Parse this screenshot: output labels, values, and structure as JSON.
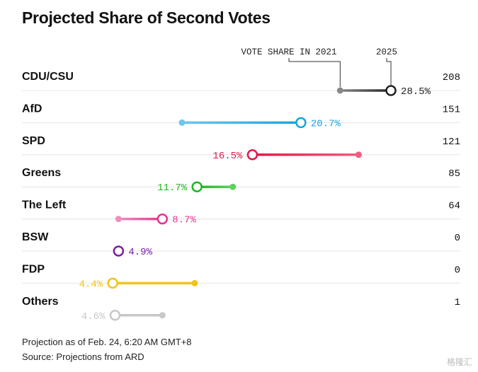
{
  "title": "Projected Share of Second Votes",
  "legend": {
    "label_2021": "VOTE SHARE IN 2021",
    "label_2025": "2025"
  },
  "chart_data": {
    "type": "dumbbell",
    "title": "Projected Share of Second Votes",
    "series_names": [
      "2021",
      "2025"
    ],
    "unit": "%",
    "rows": [
      {
        "party": "CDU/CSU",
        "share_2021": 24.1,
        "share_2025": 28.5,
        "label": "28.5%",
        "seats": "208",
        "color": "#222222",
        "color_2021": "#888888"
      },
      {
        "party": "AfD",
        "share_2021": 10.4,
        "share_2025": 20.7,
        "label": "20.7%",
        "seats": "151",
        "color": "#1aa3dc",
        "color_2021": "#6cc6ee"
      },
      {
        "party": "SPD",
        "share_2021": 25.7,
        "share_2025": 16.5,
        "label": "16.5%",
        "seats": "121",
        "color": "#e0174a",
        "color_2021": "#f05c80"
      },
      {
        "party": "Greens",
        "share_2021": 14.8,
        "share_2025": 11.7,
        "label": "11.7%",
        "seats": "85",
        "color": "#22b422",
        "color_2021": "#5ed05e"
      },
      {
        "party": "The Left",
        "share_2021": 4.9,
        "share_2025": 8.7,
        "label": "8.7%",
        "seats": "64",
        "color": "#e6358f",
        "color_2021": "#f08cc0"
      },
      {
        "party": "BSW",
        "share_2021": null,
        "share_2025": 4.9,
        "label": "4.9%",
        "seats": "0",
        "color": "#7a1fa8",
        "color_2021": "#7a1fa8"
      },
      {
        "party": "FDP",
        "share_2021": 11.5,
        "share_2025": 4.4,
        "label": "4.4%",
        "seats": "0",
        "color": "#f0c419",
        "color_2021": "#f0c419"
      },
      {
        "party": "Others",
        "share_2021": 8.7,
        "share_2025": 4.6,
        "label": "4.6%",
        "seats": "1",
        "color": "#c8c8c8",
        "color_2021": "#c8c8c8"
      }
    ]
  },
  "footer": {
    "note": "Projection as of Feb. 24, 6:20 AM GMT+8",
    "source": "Source: Projections from ARD"
  },
  "watermark": "格隆汇"
}
